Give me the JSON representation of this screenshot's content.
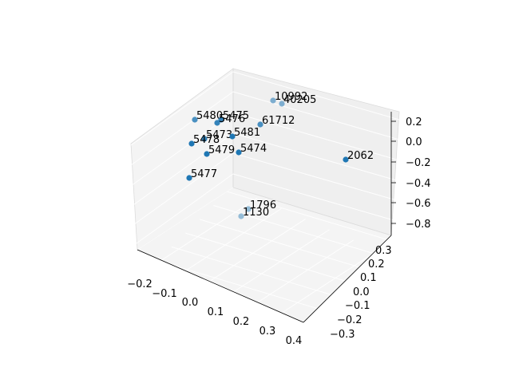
{
  "chart_data": {
    "type": "scatter3d",
    "title": "",
    "xlabel": "",
    "ylabel": "",
    "zlabel": "",
    "grid": true,
    "marker_color": "#1f77b4",
    "x_ticks": [
      "−0.2",
      "−0.1",
      "0.0",
      "0.1",
      "0.2",
      "0.3",
      "0.4"
    ],
    "y_ticks": [
      "−0.3",
      "−0.2",
      "−0.1",
      "0.0",
      "0.1",
      "0.2",
      "0.3"
    ],
    "z_ticks": [
      "0.2",
      "0.0",
      "−0.2",
      "−0.4",
      "−0.6",
      "−0.8"
    ],
    "points": [
      {
        "label": "10992",
        "x": 0.25,
        "y": 0.3,
        "z": 0.3,
        "alpha": 0.55
      },
      {
        "label": "40205",
        "x": 0.28,
        "y": 0.3,
        "z": 0.28,
        "alpha": 0.55
      },
      {
        "label": "61712",
        "x": 0.1,
        "y": 0.25,
        "z": 0.15,
        "alpha": 0.8
      },
      {
        "label": "5480",
        "x": -0.15,
        "y": 0.28,
        "z": 0.12,
        "alpha": 0.8
      },
      {
        "label": "5475",
        "x": -0.06,
        "y": 0.3,
        "z": 0.12,
        "alpha": 0.9
      },
      {
        "label": "5476",
        "x": -0.1,
        "y": 0.25,
        "z": 0.1,
        "alpha": 0.9
      },
      {
        "label": "5473",
        "x": -0.15,
        "y": 0.2,
        "z": 0.04,
        "alpha": 0.9
      },
      {
        "label": "5481",
        "x": -0.05,
        "y": 0.2,
        "z": 0.05,
        "alpha": 1.0
      },
      {
        "label": "5478",
        "x": -0.18,
        "y": 0.15,
        "z": -0.02,
        "alpha": 1.0
      },
      {
        "label": "5479",
        "x": -0.1,
        "y": 0.1,
        "z": -0.08,
        "alpha": 1.0
      },
      {
        "label": "5474",
        "x": 0.0,
        "y": 0.15,
        "z": -0.05,
        "alpha": 1.0
      },
      {
        "label": "5477",
        "x": -0.2,
        "y": 0.05,
        "z": -0.4,
        "alpha": 1.0
      },
      {
        "label": "2062",
        "x": 0.35,
        "y": 0.1,
        "z": -0.1,
        "alpha": 1.0
      },
      {
        "label": "1796",
        "x": 0.1,
        "y": 0.2,
        "z": -0.65,
        "alpha": 0.45
      },
      {
        "label": "1130",
        "x": 0.05,
        "y": 0.15,
        "z": -0.7,
        "alpha": 0.45
      }
    ]
  }
}
